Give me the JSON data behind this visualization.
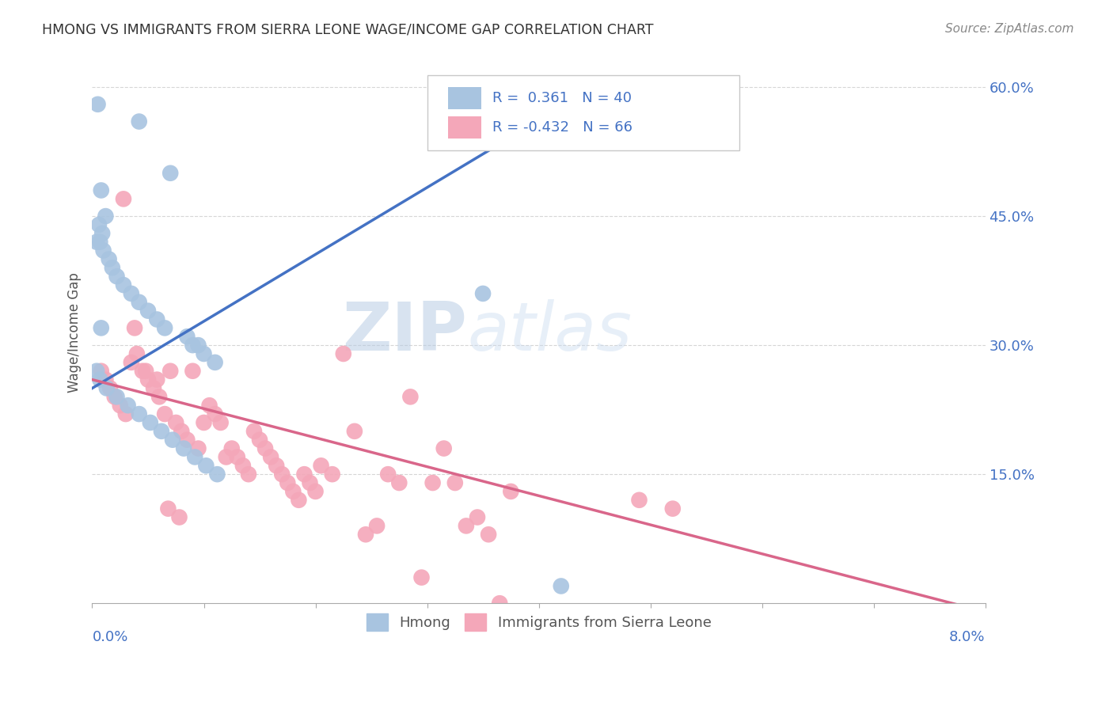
{
  "title": "HMONG VS IMMIGRANTS FROM SIERRA LEONE WAGE/INCOME GAP CORRELATION CHART",
  "source": "Source: ZipAtlas.com",
  "ylabel": "Wage/Income Gap",
  "xlim": [
    0.0,
    8.0
  ],
  "ylim": [
    0.0,
    63.0
  ],
  "ytick_values": [
    15,
    30,
    45,
    60
  ],
  "ytick_labels": [
    "15.0%",
    "30.0%",
    "45.0%",
    "60.0%"
  ],
  "hmong_color": "#a8c4e0",
  "hmong_line_color": "#4472c4",
  "sl_color": "#f4a7b9",
  "sl_line_color": "#d9668a",
  "hmong_R": 0.361,
  "hmong_N": 40,
  "sl_R": -0.432,
  "sl_N": 66,
  "legend_label_1": "Hmong",
  "legend_label_2": "Immigrants from Sierra Leone",
  "watermark_zip": "ZIP",
  "watermark_atlas": "atlas",
  "bg_color": "#ffffff",
  "grid_color": "#cccccc",
  "title_color": "#333333",
  "axis_label_color": "#4472c4",
  "text_color": "#555555",
  "source_color": "#888888",
  "hmong_x": [
    0.05,
    0.42,
    0.08,
    0.12,
    0.06,
    0.09,
    0.04,
    0.07,
    0.1,
    0.15,
    0.18,
    0.22,
    0.28,
    0.35,
    0.42,
    0.5,
    0.58,
    0.65,
    0.7,
    0.08,
    0.85,
    0.9,
    0.95,
    1.0,
    1.1,
    0.04,
    0.07,
    0.13,
    0.22,
    0.32,
    0.42,
    0.52,
    0.62,
    0.72,
    0.82,
    0.92,
    1.02,
    1.12,
    3.5,
    4.2
  ],
  "hmong_y": [
    58,
    56,
    48,
    45,
    44,
    43,
    42,
    42,
    41,
    40,
    39,
    38,
    37,
    36,
    35,
    34,
    33,
    32,
    50,
    32,
    31,
    30,
    30,
    29,
    28,
    27,
    26,
    25,
    24,
    23,
    22,
    21,
    20,
    19,
    18,
    17,
    16,
    15,
    36,
    2
  ],
  "sl_x": [
    0.08,
    0.12,
    0.16,
    0.2,
    0.25,
    0.3,
    0.35,
    0.4,
    0.45,
    0.5,
    0.55,
    0.6,
    0.65,
    0.7,
    0.75,
    0.8,
    0.85,
    0.9,
    0.95,
    1.0,
    1.05,
    1.1,
    1.15,
    1.2,
    1.25,
    1.3,
    1.35,
    1.4,
    1.45,
    1.5,
    1.55,
    1.6,
    1.65,
    1.7,
    1.75,
    1.8,
    1.85,
    1.9,
    1.95,
    2.0,
    2.05,
    2.15,
    2.25,
    2.35,
    2.45,
    2.55,
    2.65,
    2.75,
    2.85,
    2.95,
    3.05,
    3.15,
    3.25,
    3.35,
    3.45,
    3.55,
    3.65,
    3.75,
    4.9,
    5.2,
    0.28,
    0.38,
    0.48,
    0.58,
    0.68,
    0.78
  ],
  "sl_y": [
    27,
    26,
    25,
    24,
    23,
    22,
    28,
    29,
    27,
    26,
    25,
    24,
    22,
    27,
    21,
    20,
    19,
    27,
    18,
    21,
    23,
    22,
    21,
    17,
    18,
    17,
    16,
    15,
    20,
    19,
    18,
    17,
    16,
    15,
    14,
    13,
    12,
    15,
    14,
    13,
    16,
    15,
    29,
    20,
    8,
    9,
    15,
    14,
    24,
    3,
    14,
    18,
    14,
    9,
    10,
    8,
    0,
    13,
    12,
    11,
    47,
    32,
    27,
    26,
    11,
    10
  ],
  "hmong_line_x": [
    0.0,
    4.5
  ],
  "hmong_line_y": [
    25.0,
    60.0
  ],
  "sl_line_x": [
    0.0,
    8.0
  ],
  "sl_line_y": [
    26.0,
    -1.0
  ]
}
